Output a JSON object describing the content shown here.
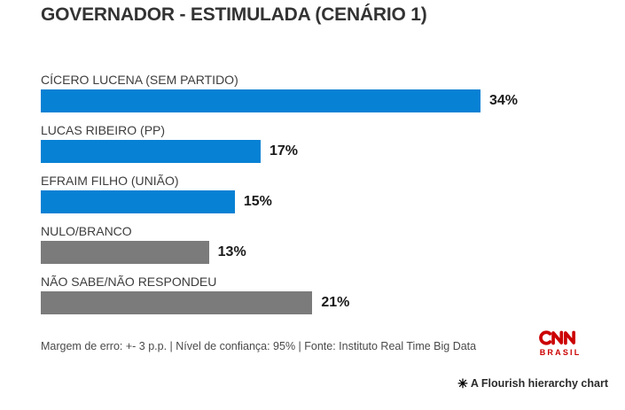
{
  "chart_data": {
    "type": "bar",
    "orientation": "horizontal",
    "title": "GOVERNADOR - ESTIMULADA (CENÁRIO 1)",
    "categories": [
      "CÍCERO LUCENA (SEM PARTIDO)",
      "LUCAS RIBEIRO (PP)",
      "EFRAIM FILHO (UNIÃO)",
      "NULO/BRANCO",
      "NÃO SABE/NÃO RESPONDEU"
    ],
    "values": [
      34,
      17,
      15,
      13,
      21
    ],
    "value_labels": [
      "34%",
      "17%",
      "15%",
      "13%",
      "21%"
    ],
    "bar_colors": [
      "#0781d4",
      "#0781d4",
      "#0781d4",
      "#7b7b7b",
      "#7b7b7b"
    ],
    "value_suffix": "%",
    "xlabel": "",
    "ylabel": "",
    "xlim": [
      0,
      34
    ],
    "grid": false,
    "legend": "none"
  },
  "colors": {
    "candidate_bar": "#0781d4",
    "other_bar": "#7b7b7b",
    "cnn_red": "#cc0000",
    "title_text": "#333333",
    "label_text": "#3d3d3d",
    "value_text": "#1a1a1a",
    "background": "#ffffff"
  },
  "footer": {
    "note": "Margem de erro: +- 3 p.p. | Nível de confiança: 95% | Fonte: Instituto Real Time Big Data"
  },
  "branding": {
    "logo_name": "CNN",
    "logo_subtext": "BRASIL"
  },
  "attribution": {
    "icon": "✳",
    "text": "A Flourish hierarchy chart"
  }
}
